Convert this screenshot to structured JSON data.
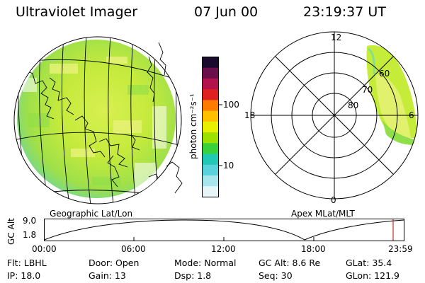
{
  "header": {
    "title": "Ultraviolet Imager",
    "date": "07 Jun 00",
    "time": "23:19:37 UT"
  },
  "panels": {
    "left_caption": "Geographic Lat/Lon",
    "right_caption": "Apex MLat/MLT"
  },
  "colorbar": {
    "axis_label": "photon cm⁻²s⁻¹",
    "tick_100": "100",
    "tick_10": "10",
    "colors": [
      "#1a0a2e",
      "#6b0f4b",
      "#b4124a",
      "#e02020",
      "#ff7a00",
      "#ffc000",
      "#e6f000",
      "#9ee000",
      "#3ad23a",
      "#22c8b4",
      "#5ad2dc",
      "#a8e6ee",
      "#e6f6f8"
    ]
  },
  "polar": {
    "mlt_top": "12",
    "mlt_left": "18",
    "mlt_right": "6",
    "mlt_bottom": "0",
    "lat_60": "60",
    "lat_70": "70",
    "lat_80": "80"
  },
  "altitude_plot": {
    "ylabel": "GC Alt",
    "ytick_top": "9.0",
    "ytick_bottom": "1.8",
    "xticks": [
      "00:00",
      "06:00",
      "12:00",
      "18:00",
      "23:59"
    ],
    "marker_time": "23:19"
  },
  "info": {
    "flt": "Flt: LBHL",
    "ip": "IP: 18.0",
    "door": "Door: Open",
    "gain": "Gain: 13",
    "mode": "Mode: Normal",
    "dsp": "Dsp:      1.8",
    "gc_alt": "GC Alt: 8.6 Re",
    "seq": "Seq: 30",
    "glat": "GLat:  35.4",
    "glon": "GLon: 121.9"
  },
  "colors": {
    "aurora_main": "#c6ec3a",
    "aurora_light": "#e8f27a",
    "aurora_green": "#8fde4a",
    "aurora_cyan": "#5cd6c8",
    "marker": "#c00000"
  }
}
